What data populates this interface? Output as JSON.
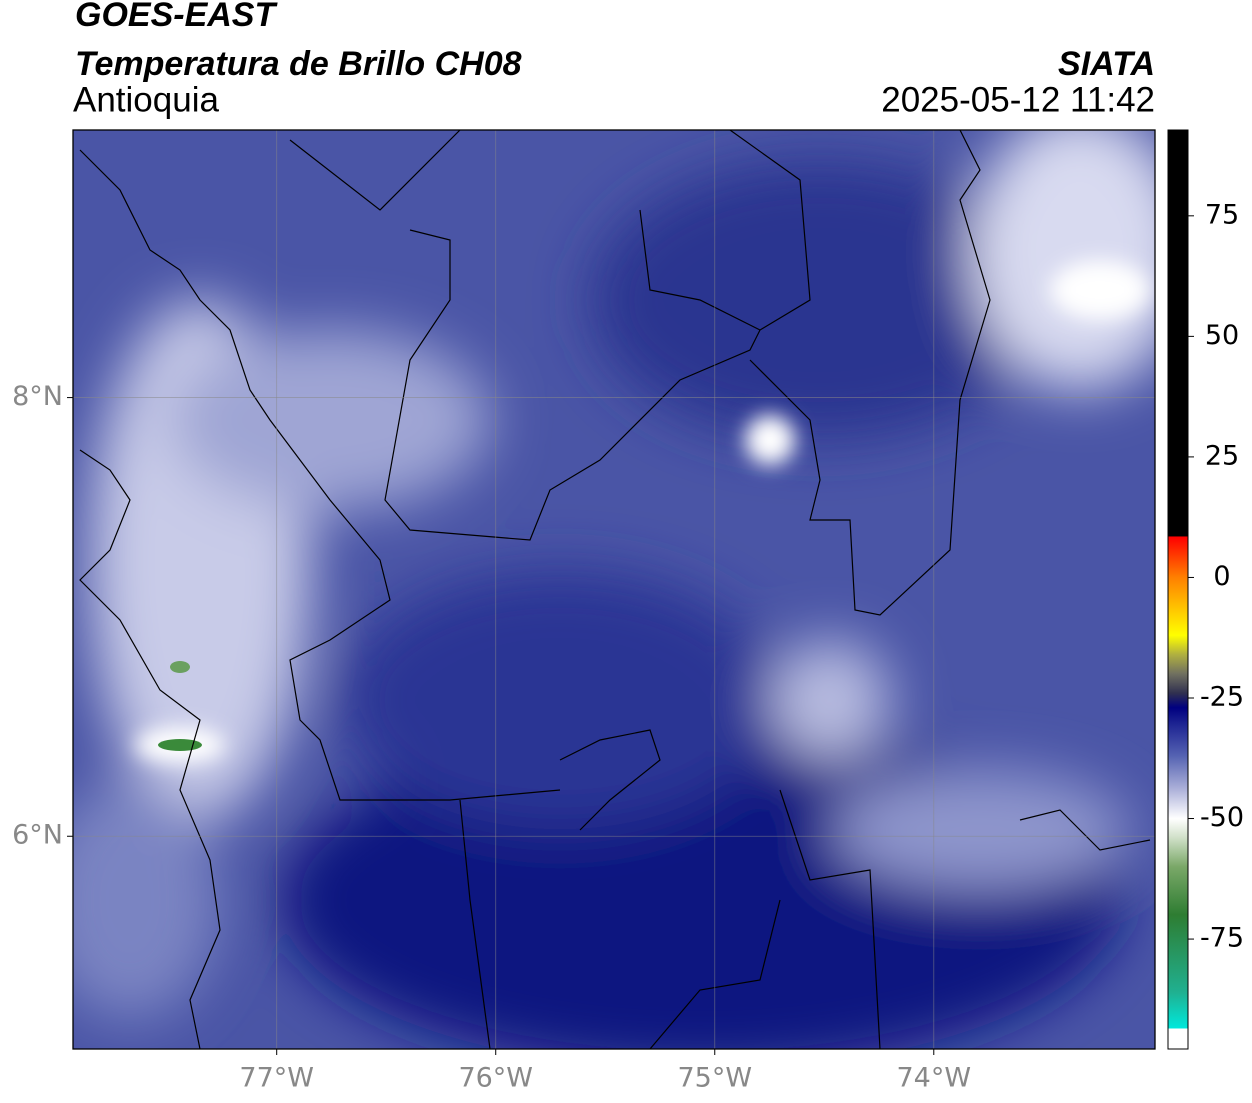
{
  "header": {
    "title": "GOES-EAST",
    "subtitle": "Temperatura de Brillo CH08",
    "region": "Antioquia",
    "source": "SIATA",
    "datetime": "2025-05-12 11:42"
  },
  "map": {
    "xlim": [
      -77.93,
      -72.99
    ],
    "ylim": [
      5.03,
      9.22
    ],
    "xticks": [
      {
        "value": -77,
        "label": "77°W"
      },
      {
        "value": -76,
        "label": "76°W"
      },
      {
        "value": -75,
        "label": "75°W"
      },
      {
        "value": -74,
        "label": "74°W"
      }
    ],
    "yticks": [
      {
        "value": 6,
        "label": "6°N"
      },
      {
        "value": 8,
        "label": "8°N"
      }
    ],
    "grid": true
  },
  "colorbar": {
    "lim": [
      -97.8,
      92.8
    ],
    "ticks": [
      -75,
      -50,
      -25,
      0,
      25,
      50,
      75
    ],
    "stops": [
      {
        "value": -97.8,
        "color": "#ffffff"
      },
      {
        "value": -93.6,
        "color": "#ffffff"
      },
      {
        "value": -93.5,
        "color": "#00e8dc"
      },
      {
        "value": -86,
        "color": "#20b090"
      },
      {
        "value": -70,
        "color": "#2e7d32"
      },
      {
        "value": -60,
        "color": "#7aa868"
      },
      {
        "value": -54,
        "color": "#d0e0c8"
      },
      {
        "value": -50,
        "color": "#ffffff"
      },
      {
        "value": -44,
        "color": "#aeb2da"
      },
      {
        "value": -37,
        "color": "#5563b2"
      },
      {
        "value": -30,
        "color": "#1a2090"
      },
      {
        "value": -27,
        "color": "#000080"
      },
      {
        "value": -24,
        "color": "#303050"
      },
      {
        "value": -20,
        "color": "#707060"
      },
      {
        "value": -16,
        "color": "#b0b040"
      },
      {
        "value": -12,
        "color": "#ffff00"
      },
      {
        "value": -6,
        "color": "#ffc000"
      },
      {
        "value": 0,
        "color": "#ff8000"
      },
      {
        "value": 8.4,
        "color": "#ff0000"
      },
      {
        "value": 8.6,
        "color": "#000000"
      },
      {
        "value": 92.8,
        "color": "#000000"
      }
    ]
  }
}
